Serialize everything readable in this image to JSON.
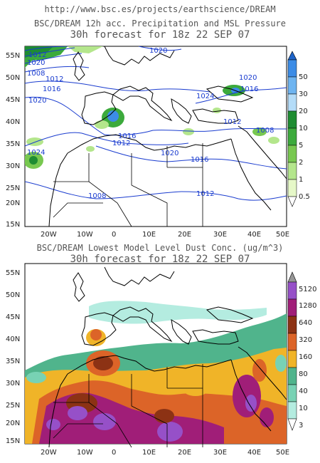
{
  "header": {
    "url": "http://www.bsc.es/projects/earthscience/DREAM"
  },
  "panel1": {
    "title": "BSC/DREAM 12h acc. Precipitation and MSL Pressure",
    "subtitle": "30h forecast for 18z 22 SEP 07",
    "isobar_labels": [
      "1020",
      "1016",
      "1012",
      "1008",
      "1008",
      "1012",
      "1016",
      "1020",
      "1024",
      "1016",
      "1012",
      "1020",
      "1024",
      "1016",
      "1020",
      "1012",
      "1008",
      "1012",
      "1020"
    ],
    "colorbar": {
      "ticks": [
        "50",
        "30",
        "20",
        "10",
        "5",
        "2",
        "1",
        "0.5"
      ],
      "colors": [
        "#1e64c8",
        "#3c8ce6",
        "#6eb4f0",
        "#b4dcf8",
        "#1e8c32",
        "#3caa3c",
        "#78c850",
        "#b4e68c",
        "#e6f8c8"
      ]
    }
  },
  "panel2": {
    "title": "BSC/DREAM Lowest Model Level Dust Conc. (ug/m^3)",
    "subtitle": "30h forecast for 18z 22 SEP 07",
    "colorbar": {
      "ticks": [
        "5120",
        "1280",
        "640",
        "320",
        "160",
        "80",
        "40",
        "10",
        "3"
      ],
      "colors": [
        "#969696",
        "#9650c8",
        "#a01e78",
        "#8c3214",
        "#dc6428",
        "#f0b428",
        "#50b48c",
        "#78d2b4",
        "#b4ece0",
        "#e6fafa"
      ]
    }
  },
  "axes": {
    "lat_labels": [
      "55N",
      "50N",
      "45N",
      "40N",
      "35N",
      "30N",
      "25N",
      "20N",
      "15N"
    ],
    "lon_labels": [
      "20W",
      "10W",
      "0",
      "10E",
      "20E",
      "30E",
      "40E",
      "50E"
    ]
  }
}
